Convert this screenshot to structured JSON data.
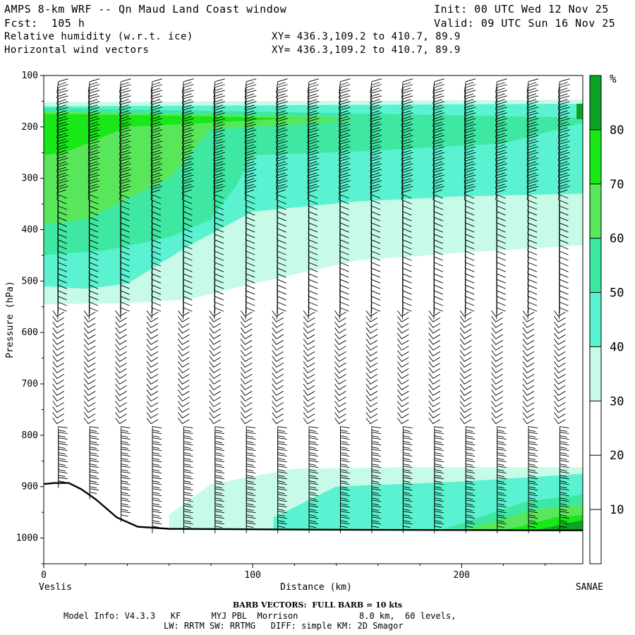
{
  "header": {
    "title": "AMPS 8-km WRF -- Qn Maud Land Coast window",
    "init": "Init: 00 UTC Wed 12 Nov 25",
    "fcst": "Fcst:  105 h",
    "valid": "Valid: 09 UTC Sun 16 Nov 25",
    "field1": "Relative humidity (w.r.t. ice)",
    "field2": "Horizontal wind vectors",
    "xy1": "XY= 436.3,109.2 to 410.7, 89.9",
    "xy2": "XY= 436.3,109.2 to 410.7, 89.9"
  },
  "footer": {
    "barb": "BARB VECTORS:  FULL BARB = 10 kts",
    "model": "Model Info: V4.3.3   KF      MYJ PBL  Morrison            8.0 km,  60 levels,",
    "physics": "LW: RRTM SW: RRTMG   DIFF: simple KM: 2D Smagor"
  },
  "colors": {
    "rh30": "#c8fae8",
    "rh40": "#5af2d0",
    "rh50": "#3ee8a2",
    "rh60": "#5ae65a",
    "rh70": "#18e818",
    "rh80": "#0ca424"
  },
  "chart_data": {
    "type": "heatmap",
    "title": "Relative humidity (w.r.t. ice) cross-section with horizontal wind vectors",
    "xlabel": "Distance (km)",
    "ylabel": "Pressure (hPa)",
    "xlim": [
      0,
      258
    ],
    "ylim": [
      1050,
      100
    ],
    "x_ticks": [
      0,
      100,
      200
    ],
    "y_ticks": [
      100,
      200,
      300,
      400,
      500,
      600,
      700,
      800,
      900,
      1000
    ],
    "left_endpoint": "Veslis",
    "right_endpoint": "SANAE",
    "colorbar": {
      "unit": "%",
      "ticks": [
        10,
        20,
        30,
        40,
        50,
        60,
        70,
        80
      ],
      "levels": [
        {
          "from": 30,
          "to": 40,
          "color_key": "rh30"
        },
        {
          "from": 40,
          "to": 50,
          "color_key": "rh40"
        },
        {
          "from": 50,
          "to": 60,
          "color_key": "rh50"
        },
        {
          "from": 60,
          "to": 70,
          "color_key": "rh60"
        },
        {
          "from": 70,
          "to": 80,
          "color_key": "rh70"
        },
        {
          "from": 80,
          "to": 90,
          "color_key": "rh80"
        }
      ]
    },
    "regions": [
      {
        "level": 30,
        "color_key": "rh30",
        "polygon": [
          [
            0,
            152
          ],
          [
            258,
            147
          ],
          [
            258,
            430
          ],
          [
            200,
            445
          ],
          [
            150,
            460
          ],
          [
            100,
            505
          ],
          [
            70,
            535
          ],
          [
            40,
            543
          ],
          [
            0,
            545
          ]
        ]
      },
      {
        "level": 40,
        "color_key": "rh40",
        "polygon": [
          [
            0,
            160
          ],
          [
            258,
            155
          ],
          [
            258,
            330
          ],
          [
            200,
            335
          ],
          [
            150,
            345
          ],
          [
            100,
            365
          ],
          [
            70,
            430
          ],
          [
            40,
            505
          ],
          [
            20,
            515
          ],
          [
            0,
            510
          ]
        ]
      },
      {
        "level": 50,
        "color_key": "rh50",
        "polygon": [
          [
            0,
            163
          ],
          [
            258,
            182
          ],
          [
            258,
            192
          ],
          [
            220,
            232
          ],
          [
            150,
            248
          ],
          [
            100,
            255
          ],
          [
            92,
            315
          ],
          [
            80,
            380
          ],
          [
            60,
            415
          ],
          [
            30,
            440
          ],
          [
            0,
            450
          ]
        ]
      },
      {
        "level": 60,
        "color_key": "rh60",
        "polygon": [
          [
            0,
            170
          ],
          [
            70,
            175
          ],
          [
            130,
            180
          ],
          [
            150,
            188
          ],
          [
            120,
            195
          ],
          [
            80,
            205
          ],
          [
            60,
            300
          ],
          [
            40,
            340
          ],
          [
            20,
            380
          ],
          [
            0,
            390
          ]
        ]
      },
      {
        "level": 70,
        "color_key": "rh70",
        "polygon": [
          [
            0,
            175
          ],
          [
            60,
            178
          ],
          [
            120,
            183
          ],
          [
            80,
            192
          ],
          [
            40,
            200
          ],
          [
            25,
            225
          ],
          [
            10,
            250
          ],
          [
            0,
            255
          ]
        ]
      },
      {
        "level": 80,
        "color_key": "rh80",
        "polygon": [
          [
            255,
            155
          ],
          [
            258,
            155
          ],
          [
            258,
            185
          ],
          [
            255,
            185
          ]
        ]
      },
      {
        "level": 30,
        "color_key": "rh30",
        "polygon": [
          [
            60,
            955
          ],
          [
            80,
            895
          ],
          [
            120,
            865
          ],
          [
            180,
            862
          ],
          [
            258,
            862
          ],
          [
            258,
            985
          ],
          [
            60,
            985
          ]
        ]
      },
      {
        "level": 40,
        "color_key": "rh40",
        "polygon": [
          [
            110,
            960
          ],
          [
            140,
            900
          ],
          [
            200,
            890
          ],
          [
            258,
            875
          ],
          [
            258,
            985
          ],
          [
            110,
            985
          ]
        ]
      },
      {
        "level": 50,
        "color_key": "rh50",
        "polygon": [
          [
            190,
            985
          ],
          [
            230,
            930
          ],
          [
            258,
            915
          ],
          [
            258,
            985
          ]
        ]
      },
      {
        "level": 60,
        "color_key": "rh60",
        "polygon": [
          [
            200,
            985
          ],
          [
            235,
            945
          ],
          [
            258,
            935
          ],
          [
            258,
            985
          ]
        ]
      },
      {
        "level": 70,
        "color_key": "rh70",
        "polygon": [
          [
            220,
            985
          ],
          [
            245,
            960
          ],
          [
            258,
            955
          ],
          [
            258,
            985
          ]
        ]
      },
      {
        "level": 80,
        "color_key": "rh80",
        "polygon": [
          [
            235,
            985
          ],
          [
            258,
            965
          ],
          [
            258,
            985
          ]
        ]
      }
    ],
    "terrain": [
      [
        0,
        895
      ],
      [
        5,
        893
      ],
      [
        12,
        893
      ],
      [
        18,
        905
      ],
      [
        25,
        925
      ],
      [
        35,
        960
      ],
      [
        45,
        978
      ],
      [
        60,
        982
      ],
      [
        100,
        983
      ],
      [
        150,
        984
      ],
      [
        258,
        985
      ]
    ]
  }
}
